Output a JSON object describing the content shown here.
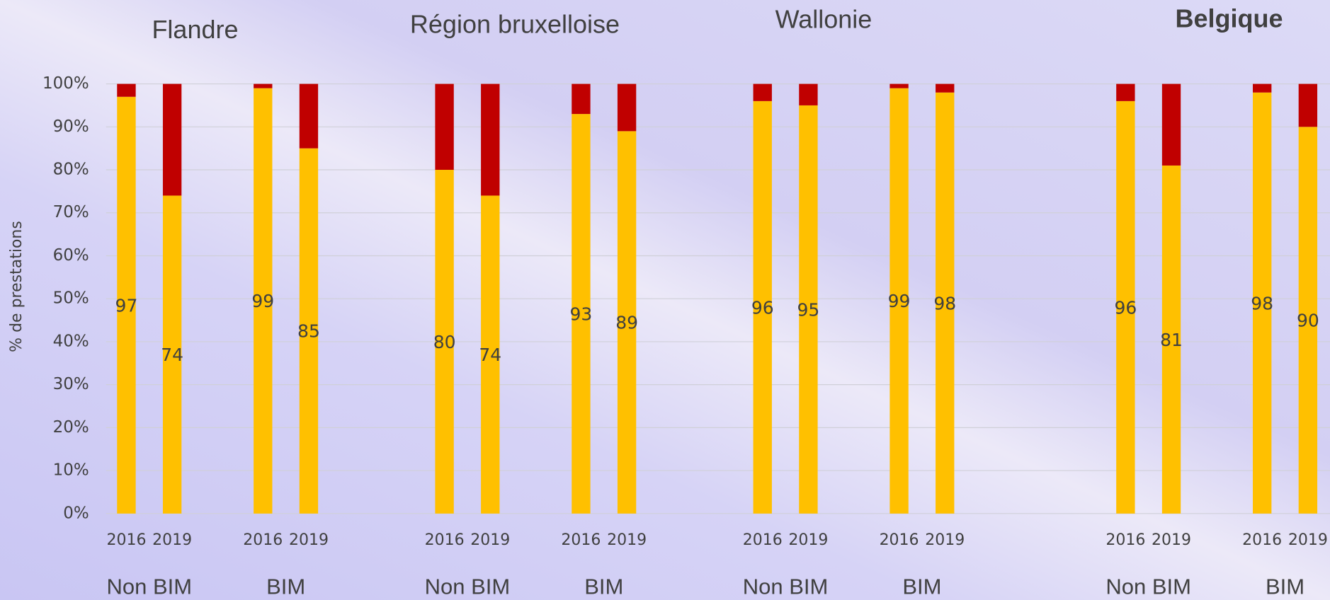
{
  "chart_data": {
    "type": "stacked_bar",
    "regions": [
      "Flandre",
      "Région bruxelloise",
      "Wallonie",
      "Belgique"
    ],
    "subgroups": [
      "Non BIM",
      "BIM",
      "Non BIM",
      "BIM",
      "Non BIM",
      "BIM",
      "Non BIM",
      "BIM"
    ],
    "categories": [
      "2016",
      "2019",
      "2016",
      "2019",
      "2016",
      "2019",
      "2016",
      "2019",
      "2016",
      "2019",
      "2016",
      "2019",
      "2016",
      "2019",
      "2016",
      "2019"
    ],
    "y_label": "% de prestations",
    "series": [
      {
        "color": "#ffc000",
        "values": [
          97,
          74,
          99,
          85,
          80,
          74,
          93,
          89,
          96,
          95,
          99,
          98,
          96,
          81,
          98,
          90
        ]
      },
      {
        "color": "#c00000",
        "values": [
          3,
          26,
          1,
          15,
          20,
          26,
          7,
          11,
          4,
          5,
          1,
          2,
          4,
          19,
          2,
          10
        ]
      }
    ],
    "ylim": [
      0,
      100
    ],
    "yticks": [
      {
        "value": 0,
        "label": "0%"
      },
      {
        "value": 10,
        "label": "10%"
      },
      {
        "value": 20,
        "label": "20%"
      },
      {
        "value": 30,
        "label": "30%"
      },
      {
        "value": 40,
        "label": "40%"
      },
      {
        "value": 50,
        "label": "50%"
      },
      {
        "value": 60,
        "label": "60%"
      },
      {
        "value": 70,
        "label": "70%"
      },
      {
        "value": 80,
        "label": "80%"
      },
      {
        "value": 90,
        "label": "90%"
      },
      {
        "value": 100,
        "label": "100%"
      }
    ],
    "grid": true
  }
}
